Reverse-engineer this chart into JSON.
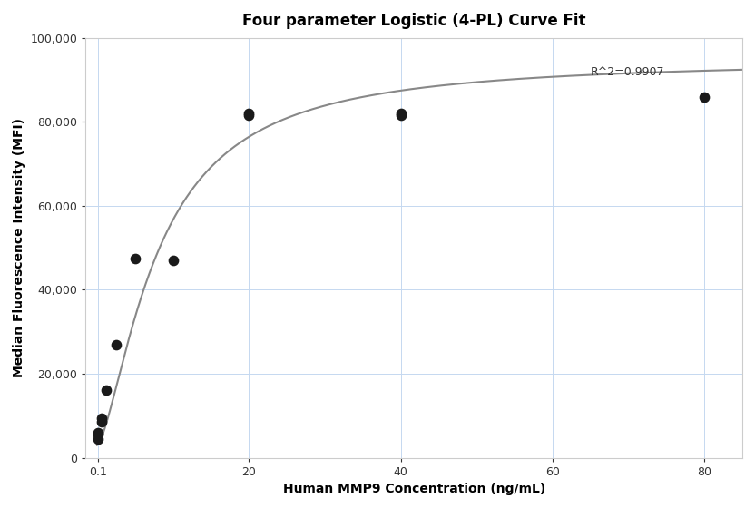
{
  "title": "Four parameter Logistic (4-PL) Curve Fit",
  "xlabel": "Human MMP9 Concentration (ng/mL)",
  "ylabel": "Median Fluorescence Intensity (MFI)",
  "scatter_x": [
    0.0,
    0.0,
    0.0,
    0.625,
    0.625,
    1.25,
    2.5,
    5.0,
    10.0,
    20.0,
    20.0,
    40.0,
    40.0,
    80.0
  ],
  "scatter_y": [
    4500,
    5500,
    6000,
    8500,
    9500,
    16000,
    27000,
    47500,
    47000,
    81500,
    82000,
    81500,
    82000,
    86000
  ],
  "xlim": [
    -1.5,
    85.0
  ],
  "ylim": [
    0,
    100000
  ],
  "xticks": [
    0.1,
    20,
    40,
    60,
    80
  ],
  "xtick_labels": [
    "0.1",
    "20",
    "40",
    "60",
    "80"
  ],
  "yticks": [
    0,
    20000,
    40000,
    60000,
    80000,
    100000
  ],
  "ytick_labels": [
    "0",
    "20,000",
    "40,000",
    "60,000",
    "80,000",
    "100,000"
  ],
  "r_squared": "R^2=0.9907",
  "r_squared_x": 65,
  "r_squared_y": 91000,
  "curve_color": "#888888",
  "scatter_color": "#1a1a1a",
  "grid_color": "#c5d8f0",
  "background_color": "#ffffff",
  "4pl_A": 3000,
  "4pl_B": 1.5,
  "4pl_C": 8.0,
  "4pl_D": 95000
}
